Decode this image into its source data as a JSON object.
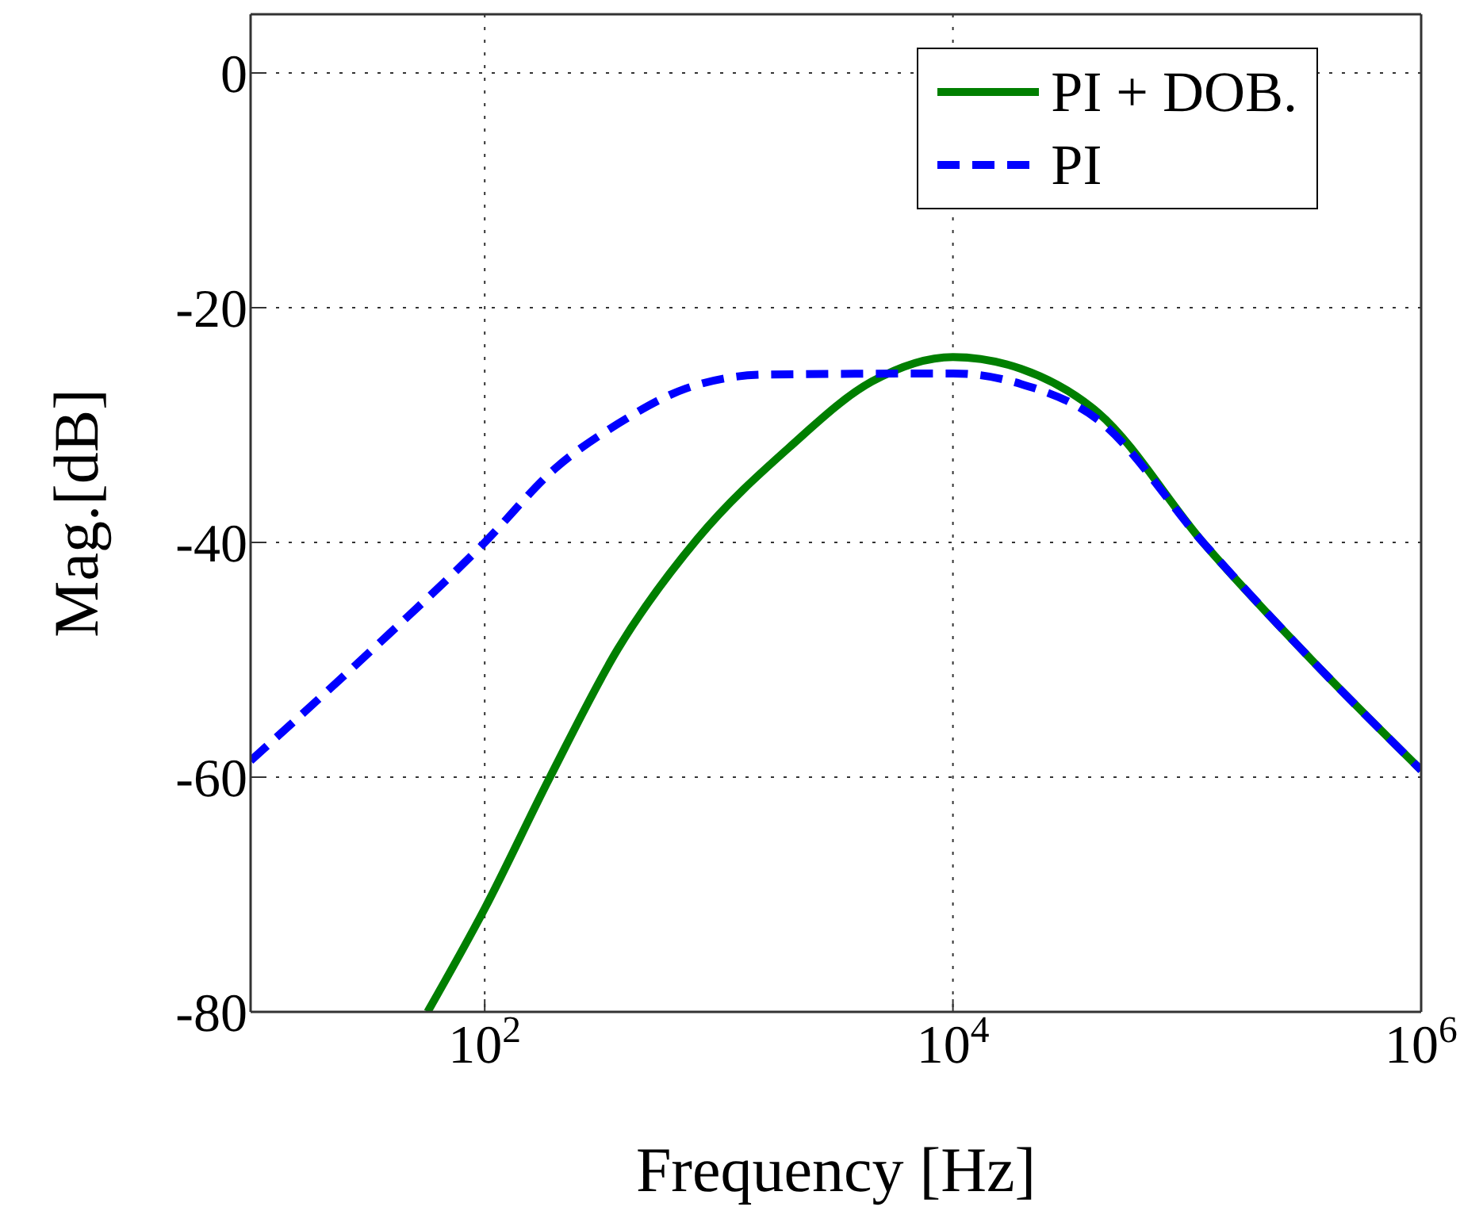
{
  "chart_data": {
    "type": "line",
    "xlabel": "Frequency [Hz]",
    "ylabel": "Mag.[dB]",
    "log": "x",
    "xlim": [
      10,
      1000000
    ],
    "xticks": [
      {
        "value": 100,
        "label": "10$^{2}$"
      },
      {
        "value": 10000,
        "label": "10$^{4}$"
      },
      {
        "value": 1000000,
        "label": "10$^{6}$"
      }
    ],
    "ylim": [
      -80,
      5
    ],
    "yticks": [
      -80,
      -60,
      -40,
      -20,
      0
    ],
    "grid": true,
    "legend": "top right",
    "series": [
      {
        "name": "PI + DOB.",
        "color": "#007f00",
        "line_style": "solid",
        "x": [
          57,
          100,
          190,
          370,
          810,
          2000,
          4500,
          10000,
          19500,
          42000,
          117000,
          340000,
          1000000
        ],
        "values": [
          -80,
          -71.2,
          -60,
          -49.1,
          -39.7,
          -31.9,
          -26.3,
          -24.2,
          -25.2,
          -29.0,
          -40,
          -50,
          -59.4
        ]
      },
      {
        "name": "PI",
        "color": "#0000ff",
        "line_style": "dashed",
        "x": [
          10,
          31.6,
          100,
          200,
          370,
          720,
          1580,
          10000,
          19500,
          42000,
          117000,
          340000,
          1000000
        ],
        "values": [
          -58.6,
          -49.5,
          -40,
          -33.7,
          -29.9,
          -26.9,
          -25.7,
          -25.6,
          -26.5,
          -29.6,
          -40,
          -50,
          -59.4
        ]
      }
    ]
  }
}
